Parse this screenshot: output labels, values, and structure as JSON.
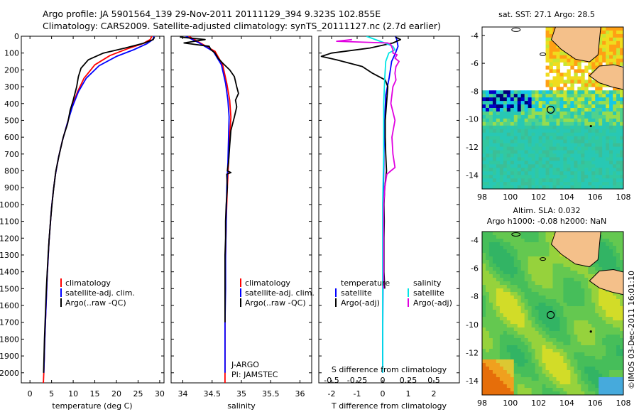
{
  "header": {
    "line1": "Argo profile: JA 5901564_139 29-Nov-2011 20111129_394 9.323S 102.855E",
    "line2": "Climatology: CARS2009. Satellite-adjusted climatology: synTS_20111127.nc (2.7d earlier)"
  },
  "watermark": "©IMOS 03-Dec-2011 16:01:10",
  "colors": {
    "climatology": "#ff0000",
    "satellite": "#0000ff",
    "argo": "#000000",
    "cyan": "#00e5e5",
    "magenta": "#e000e0",
    "land": "#f4c08a"
  },
  "chart_data": [
    {
      "type": "line",
      "title": "",
      "xlabel": "temperature (deg C)",
      "ylabel": "",
      "xlim": [
        -2,
        31
      ],
      "ylim": [
        2060,
        0
      ],
      "x_ticks": [
        0,
        5,
        10,
        15,
        20,
        25,
        30
      ],
      "y_ticks": [
        0,
        100,
        200,
        300,
        400,
        500,
        600,
        700,
        800,
        900,
        1000,
        1100,
        1200,
        1300,
        1400,
        1500,
        1600,
        1700,
        1800,
        1900,
        2000
      ],
      "legend": [
        "climatology",
        "satellite-adj. clim.",
        "Argo(..raw -QC)"
      ],
      "series": [
        {
          "name": "climatology",
          "color": "#ff0000",
          "points": [
            [
              28.2,
              0
            ],
            [
              27.8,
              20
            ],
            [
              26,
              45
            ],
            [
              22.5,
              75
            ],
            [
              18.5,
              115
            ],
            [
              15,
              170
            ],
            [
              12.5,
              250
            ],
            [
              11,
              330
            ],
            [
              9.7,
              420
            ],
            [
              8.6,
              520
            ],
            [
              7.5,
              620
            ],
            [
              6.6,
              720
            ],
            [
              5.9,
              820
            ],
            [
              5.4,
              920
            ],
            [
              5.0,
              1020
            ],
            [
              4.7,
              1120
            ],
            [
              4.4,
              1220
            ],
            [
              4.2,
              1320
            ],
            [
              4.0,
              1420
            ],
            [
              3.85,
              1520
            ],
            [
              3.7,
              1620
            ],
            [
              3.55,
              1720
            ],
            [
              3.4,
              1820
            ],
            [
              3.3,
              1920
            ],
            [
              3.2,
              2000
            ],
            [
              3.1,
              2060
            ]
          ]
        },
        {
          "name": "satellite-adj. clim.",
          "color": "#0000ff",
          "points": [
            [
              28.7,
              0
            ],
            [
              28.4,
              20
            ],
            [
              27,
              45
            ],
            [
              24,
              80
            ],
            [
              20,
              120
            ],
            [
              16,
              175
            ],
            [
              13,
              250
            ],
            [
              11.2,
              330
            ],
            [
              9.8,
              420
            ],
            [
              8.6,
              520
            ],
            [
              7.5,
              620
            ],
            [
              6.6,
              720
            ],
            [
              5.9,
              820
            ],
            [
              5.4,
              920
            ],
            [
              5.0,
              1020
            ],
            [
              4.7,
              1120
            ],
            [
              4.4,
              1220
            ],
            [
              4.2,
              1320
            ],
            [
              4.0,
              1420
            ],
            [
              3.85,
              1520
            ],
            [
              3.7,
              1620
            ],
            [
              3.55,
              1720
            ],
            [
              3.4,
              1820
            ],
            [
              3.3,
              1920
            ],
            [
              3.2,
              2000
            ]
          ]
        },
        {
          "name": "Argo(..raw -QC)",
          "color": "#000000",
          "points": [
            [
              28.8,
              5
            ],
            [
              28.5,
              20
            ],
            [
              26.5,
              40
            ],
            [
              22,
              70
            ],
            [
              17,
              100
            ],
            [
              13.5,
              140
            ],
            [
              11.8,
              190
            ],
            [
              11.2,
              240
            ],
            [
              10.8,
              300
            ],
            [
              10,
              380
            ],
            [
              9.3,
              440
            ],
            [
              8.7,
              520
            ],
            [
              7.7,
              600
            ],
            [
              6.8,
              700
            ],
            [
              6.0,
              800
            ],
            [
              5.5,
              900
            ],
            [
              5.1,
              1000
            ],
            [
              4.75,
              1100
            ],
            [
              4.45,
              1200
            ],
            [
              4.2,
              1300
            ],
            [
              4.0,
              1400
            ],
            [
              3.8,
              1500
            ],
            [
              3.65,
              1600
            ],
            [
              3.5,
              1700
            ],
            [
              3.35,
              1800
            ],
            [
              3.25,
              1900
            ],
            [
              3.15,
              2000
            ]
          ]
        }
      ]
    },
    {
      "type": "line",
      "xlabel": "salinity",
      "xlim": [
        33.8,
        36.2
      ],
      "ylim": [
        2060,
        0
      ],
      "x_ticks": [
        34,
        34.5,
        35,
        35.5,
        36
      ],
      "legend": [
        "climatology",
        "satellite-adj. clim.",
        "Argo(..raw -QC)"
      ],
      "annotations": [
        "J-ARGO",
        "PI: JAMSTEC"
      ],
      "series": [
        {
          "name": "climatology",
          "color": "#ff0000",
          "points": [
            [
              34.1,
              0
            ],
            [
              34.3,
              40
            ],
            [
              34.55,
              90
            ],
            [
              34.68,
              170
            ],
            [
              34.75,
              280
            ],
            [
              34.8,
              380
            ],
            [
              34.82,
              480
            ],
            [
              34.8,
              600
            ],
            [
              34.78,
              750
            ],
            [
              34.76,
              900
            ],
            [
              34.74,
              1100
            ],
            [
              34.73,
              1300
            ],
            [
              34.72,
              1500
            ],
            [
              34.72,
              1700
            ],
            [
              34.72,
              1900
            ],
            [
              34.72,
              2060
            ]
          ]
        },
        {
          "name": "satellite-adj. clim.",
          "color": "#0000ff",
          "points": [
            [
              34.05,
              0
            ],
            [
              34.28,
              40
            ],
            [
              34.52,
              90
            ],
            [
              34.66,
              170
            ],
            [
              34.73,
              280
            ],
            [
              34.77,
              380
            ],
            [
              34.79,
              480
            ],
            [
              34.78,
              600
            ],
            [
              34.77,
              750
            ],
            [
              34.75,
              900
            ],
            [
              34.74,
              1100
            ],
            [
              34.73,
              1300
            ],
            [
              34.73,
              1500
            ],
            [
              34.72,
              1700
            ],
            [
              34.72,
              1900
            ],
            [
              34.72,
              2000
            ]
          ]
        },
        {
          "name": "Argo(..raw -QC)",
          "color": "#000000",
          "points": [
            [
              33.95,
              5
            ],
            [
              34.38,
              20
            ],
            [
              34.02,
              40
            ],
            [
              34.45,
              60
            ],
            [
              34.48,
              80
            ],
            [
              34.55,
              100
            ],
            [
              34.6,
              130
            ],
            [
              34.68,
              160
            ],
            [
              34.8,
              200
            ],
            [
              34.88,
              240
            ],
            [
              34.92,
              300
            ],
            [
              34.95,
              340
            ],
            [
              34.9,
              380
            ],
            [
              34.92,
              420
            ],
            [
              34.88,
              480
            ],
            [
              34.82,
              560
            ],
            [
              34.8,
              650
            ],
            [
              34.78,
              750
            ],
            [
              34.76,
              800
            ],
            [
              34.82,
              810
            ],
            [
              34.75,
              820
            ],
            [
              34.76,
              900
            ],
            [
              34.74,
              1000
            ],
            [
              34.73,
              1100
            ],
            [
              34.73,
              1200
            ],
            [
              34.72,
              1300
            ],
            [
              34.72,
              1400
            ],
            [
              34.72,
              1500
            ],
            [
              34.72,
              1600
            ],
            [
              34.72,
              1700
            ]
          ]
        }
      ]
    },
    {
      "type": "line",
      "xlabel": "T difference from climatology",
      "x2label": "S difference from climatology",
      "xlim": [
        -2.5,
        3.0
      ],
      "x2lim": [
        -0.625,
        0.75
      ],
      "ylim": [
        2060,
        0
      ],
      "x_ticks": [
        -2,
        -1,
        0,
        1,
        2
      ],
      "x2_ticks": [
        "-0.5",
        "-0.25",
        "0",
        "0.25",
        "0.5"
      ],
      "x2_tick_values": [
        -0.5,
        -0.25,
        0,
        0.25,
        0.5
      ],
      "legend_titles": [
        "temperature",
        "salinity"
      ],
      "legend": [
        "satellite",
        "Argo(-adj)",
        "satellite",
        "Argo(-adj)"
      ],
      "series": [
        {
          "name": "temperature satellite",
          "color": "#0000ff",
          "points": [
            [
              0.5,
              0
            ],
            [
              0.55,
              20
            ],
            [
              0.6,
              60
            ],
            [
              0.5,
              100
            ],
            [
              0.35,
              150
            ],
            [
              0.25,
              250
            ],
            [
              0.12,
              350
            ],
            [
              0.08,
              500
            ],
            [
              0.05,
              700
            ],
            [
              0.03,
              900
            ],
            [
              0.02,
              1200
            ],
            [
              0.01,
              1500
            ],
            [
              0,
              1800
            ],
            [
              0,
              2000
            ]
          ]
        },
        {
          "name": "temperature Argo(-adj)",
          "color": "#000000",
          "points": [
            [
              0.5,
              5
            ],
            [
              0.7,
              20
            ],
            [
              0.4,
              40
            ],
            [
              -0.5,
              70
            ],
            [
              -2.0,
              100
            ],
            [
              -2.4,
              120
            ],
            [
              -1.8,
              140
            ],
            [
              -0.8,
              180
            ],
            [
              -0.4,
              220
            ],
            [
              0.1,
              260
            ],
            [
              0.2,
              300
            ],
            [
              0.15,
              400
            ],
            [
              0.1,
              500
            ],
            [
              0.1,
              600
            ],
            [
              0.12,
              700
            ],
            [
              0.15,
              800
            ],
            [
              0.08,
              900
            ],
            [
              0.05,
              1000
            ],
            [
              0.06,
              1100
            ],
            [
              0.05,
              1200
            ],
            [
              0.05,
              1300
            ],
            [
              0.05,
              1400
            ],
            [
              0.08,
              1500
            ]
          ]
        },
        {
          "name": "salinity satellite",
          "color": "#00e5e5",
          "points": [
            [
              -0.16,
              0
            ],
            [
              0.02,
              40
            ],
            [
              0.1,
              60
            ],
            [
              0.12,
              80
            ],
            [
              0.06,
              100
            ],
            [
              0.03,
              150
            ],
            [
              0.02,
              250
            ],
            [
              0.01,
              400
            ],
            [
              0.01,
              700
            ],
            [
              0.0,
              1000
            ],
            [
              0.0,
              1400
            ],
            [
              0.0,
              1800
            ],
            [
              0.0,
              2000
            ]
          ]
        },
        {
          "name": "salinity Argo(-adj)",
          "color": "#e000e0",
          "points": [
            [
              -0.3,
              20
            ],
            [
              -0.45,
              30
            ],
            [
              0.05,
              40
            ],
            [
              0.08,
              50
            ],
            [
              0.1,
              80
            ],
            [
              0.1,
              100
            ],
            [
              0.14,
              110
            ],
            [
              0.12,
              130
            ],
            [
              0.16,
              150
            ],
            [
              0.13,
              180
            ],
            [
              0.12,
              220
            ],
            [
              0.13,
              260
            ],
            [
              0.1,
              300
            ],
            [
              0.08,
              400
            ],
            [
              0.12,
              500
            ],
            [
              0.09,
              600
            ],
            [
              0.1,
              700
            ],
            [
              0.12,
              780
            ],
            [
              0.08,
              800
            ],
            [
              0.04,
              820
            ],
            [
              0.02,
              900
            ],
            [
              0.01,
              1000
            ],
            [
              0.01,
              1200
            ],
            [
              0.01,
              1400
            ],
            [
              0.01,
              1500
            ]
          ]
        }
      ]
    },
    {
      "type": "heatmap",
      "title": "sat. SST: 27.1  Argo: 28.5",
      "xlim": [
        98,
        108
      ],
      "ylim": [
        -15,
        -3.4
      ],
      "x_ticks": [
        98,
        100,
        102,
        104,
        106,
        108
      ],
      "y_ticks": [
        -4,
        -6,
        -8,
        -10,
        -12,
        -14
      ],
      "marker": {
        "lon": 102.855,
        "lat": -9.323
      }
    },
    {
      "type": "heatmap",
      "title_line1": "Altim. SLA: 0.032",
      "title_line2": "Argo h1000: -0.08 h2000: NaN",
      "xlim": [
        98,
        108
      ],
      "ylim": [
        -15,
        -3.4
      ],
      "x_ticks": [
        98,
        100,
        102,
        104,
        106,
        108
      ],
      "y_ticks": [
        -4,
        -6,
        -8,
        -10,
        -12,
        -14
      ],
      "marker": {
        "lon": 102.855,
        "lat": -9.323
      }
    }
  ]
}
